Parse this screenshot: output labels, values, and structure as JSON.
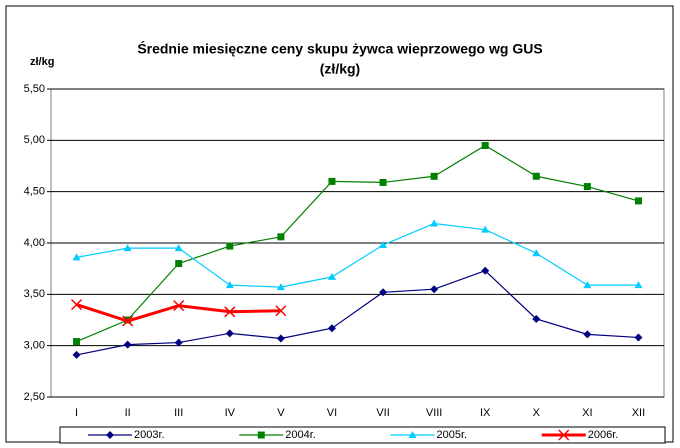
{
  "chart_data": {
    "type": "line",
    "title": "Średnie miesięczne ceny skupu żywca wieprzowego wg GUS",
    "subtitle": "(zł/kg)",
    "y_label": "zł/kg",
    "categories": [
      "I",
      "II",
      "III",
      "IV",
      "V",
      "VI",
      "VII",
      "VIII",
      "IX",
      "X",
      "XI",
      "XII"
    ],
    "series": [
      {
        "name": "2003r.",
        "color": "#000080",
        "marker": "diamond",
        "values": [
          2.91,
          3.01,
          3.03,
          3.12,
          3.07,
          3.17,
          3.52,
          3.55,
          3.73,
          3.26,
          3.11,
          3.08
        ]
      },
      {
        "name": "2004r.",
        "color": "#008000",
        "marker": "square",
        "values": [
          3.04,
          3.25,
          3.8,
          3.97,
          4.06,
          4.6,
          4.59,
          4.65,
          4.95,
          4.65,
          4.55,
          4.41
        ]
      },
      {
        "name": "2005r.",
        "color": "#00ccff",
        "marker": "triangle",
        "values": [
          3.86,
          3.95,
          3.95,
          3.59,
          3.57,
          3.67,
          3.98,
          4.19,
          4.13,
          3.9,
          3.59,
          3.59
        ]
      },
      {
        "name": "2006r.",
        "color": "#ff0000",
        "marker": "x",
        "values": [
          3.4,
          3.24,
          3.39,
          3.33,
          3.34,
          null,
          null,
          null,
          null,
          null,
          null,
          null
        ]
      }
    ],
    "ylim": [
      2.5,
      5.5
    ],
    "yticks": [
      {
        "value": 2.5,
        "label": "2,50"
      },
      {
        "value": 3.0,
        "label": "3,00"
      },
      {
        "value": 3.5,
        "label": "3,50"
      },
      {
        "value": 4.0,
        "label": "4,00"
      },
      {
        "value": 4.5,
        "label": "4,50"
      },
      {
        "value": 5.0,
        "label": "5,00"
      },
      {
        "value": 5.5,
        "label": "5,50"
      }
    ],
    "grid": true,
    "legend": "bottom"
  }
}
